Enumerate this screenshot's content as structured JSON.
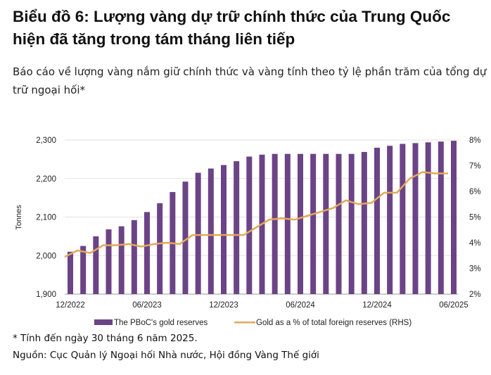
{
  "header": {
    "title": "Biểu đồ 6: Lượng vàng dự trữ chính thức của Trung Quốc hiện đã tăng trong tám tháng liên tiếp",
    "subtitle": "Báo cáo về lượng vàng nắm giữ chính thức và vàng tính theo tỷ lệ phần trăm của tổng dự trữ ngoại hối*"
  },
  "chart_data": {
    "type": "bar+line",
    "ylabel": "Tonnes",
    "ylim": [
      1900,
      2300
    ],
    "y_ticks": [
      "1,900",
      "2,000",
      "2,100",
      "2,200",
      "2,300"
    ],
    "y2lim": [
      2,
      8
    ],
    "y2_ticks": [
      "2%",
      "3%",
      "4%",
      "5%",
      "6%",
      "7%",
      "8%"
    ],
    "x_tick_labels": [
      "12/2022",
      "06/2023",
      "12/2023",
      "06/2024",
      "12/2024",
      "06/2025"
    ],
    "x_tick_indices": [
      0,
      6,
      12,
      18,
      24,
      30
    ],
    "categories": [
      "12/2022",
      "01/2023",
      "02/2023",
      "03/2023",
      "04/2023",
      "05/2023",
      "06/2023",
      "07/2023",
      "08/2023",
      "09/2023",
      "10/2023",
      "11/2023",
      "12/2023",
      "01/2024",
      "02/2024",
      "03/2024",
      "04/2024",
      "05/2024",
      "06/2024",
      "07/2024",
      "08/2024",
      "09/2024",
      "10/2024",
      "11/2024",
      "12/2024",
      "01/2025",
      "02/2025",
      "03/2025",
      "04/2025",
      "05/2025",
      "06/2025"
    ],
    "grid": "horizontal",
    "legend_position": "bottom",
    "series": [
      {
        "name": "The PBoC's gold reserves",
        "type": "bar",
        "axis": "left",
        "color": "#6b4386",
        "values": [
          2010,
          2025,
          2050,
          2068,
          2076,
          2092,
          2113,
          2136,
          2165,
          2192,
          2215,
          2226,
          2235,
          2245,
          2257,
          2262,
          2264,
          2264,
          2264,
          2264,
          2264,
          2264,
          2264,
          2269,
          2280,
          2285,
          2290,
          2292,
          2294,
          2296,
          2298
        ]
      },
      {
        "name": "Gold as a % of total foreign reserves (RHS)",
        "type": "line",
        "axis": "right",
        "color": "#e3a857",
        "values": [
          3.45,
          3.7,
          3.6,
          3.9,
          3.9,
          3.95,
          3.85,
          3.95,
          4.0,
          3.95,
          4.3,
          4.3,
          4.3,
          4.3,
          4.3,
          4.6,
          4.9,
          4.95,
          4.9,
          5.05,
          5.2,
          5.35,
          5.65,
          5.5,
          5.55,
          5.95,
          5.95,
          6.5,
          6.75,
          6.7,
          6.7
        ]
      }
    ]
  },
  "footnotes": {
    "note": "* Tính đến ngày 30 tháng 6 năm 2025.",
    "source": "Nguồn: Cục Quản lý Ngoại hối Nhà nước, Hội đồng Vàng Thế giới"
  }
}
